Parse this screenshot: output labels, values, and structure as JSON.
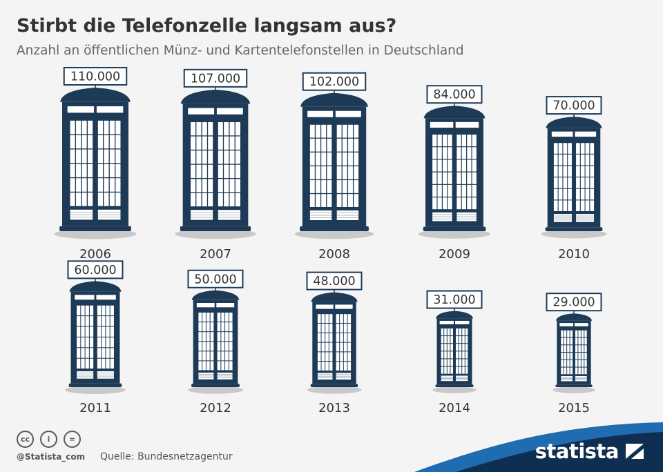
{
  "title": "Stirbt die Telefonzelle langsam aus?",
  "subtitle": "Anzahl an öffentlichen Münz- und Kartentelefonstellen in Deutschland",
  "footer": {
    "handle": "@Statista_com",
    "source": "Quelle: Bundesnetzagentur",
    "brand": "statista",
    "license_icons": [
      "cc-icon",
      "by-icon",
      "nd-icon"
    ]
  },
  "colors": {
    "booth": "#1d3a57",
    "label_border": "#1d3a57",
    "shadow": "#c9c9c9",
    "brand_blue": "#1f6cb0",
    "brand_navy": "#0f2f52"
  },
  "chart_data": {
    "type": "bar",
    "title": "Stirbt die Telefonzelle langsam aus?",
    "subtitle": "Anzahl an öffentlichen Münz- und Kartentelefonstellen in Deutschland",
    "categories": [
      "2006",
      "2007",
      "2008",
      "2009",
      "2010",
      "2011",
      "2012",
      "2013",
      "2014",
      "2015"
    ],
    "values": [
      110000,
      107000,
      102000,
      84000,
      70000,
      60000,
      50000,
      48000,
      31000,
      29000
    ],
    "value_labels": [
      "110.000",
      "107.000",
      "102.000",
      "84.000",
      "70.000",
      "60.000",
      "50.000",
      "48.000",
      "31.000",
      "29.000"
    ],
    "mark": "telephone-booth pictogram scaled by value",
    "grid": false,
    "legend": "none"
  }
}
